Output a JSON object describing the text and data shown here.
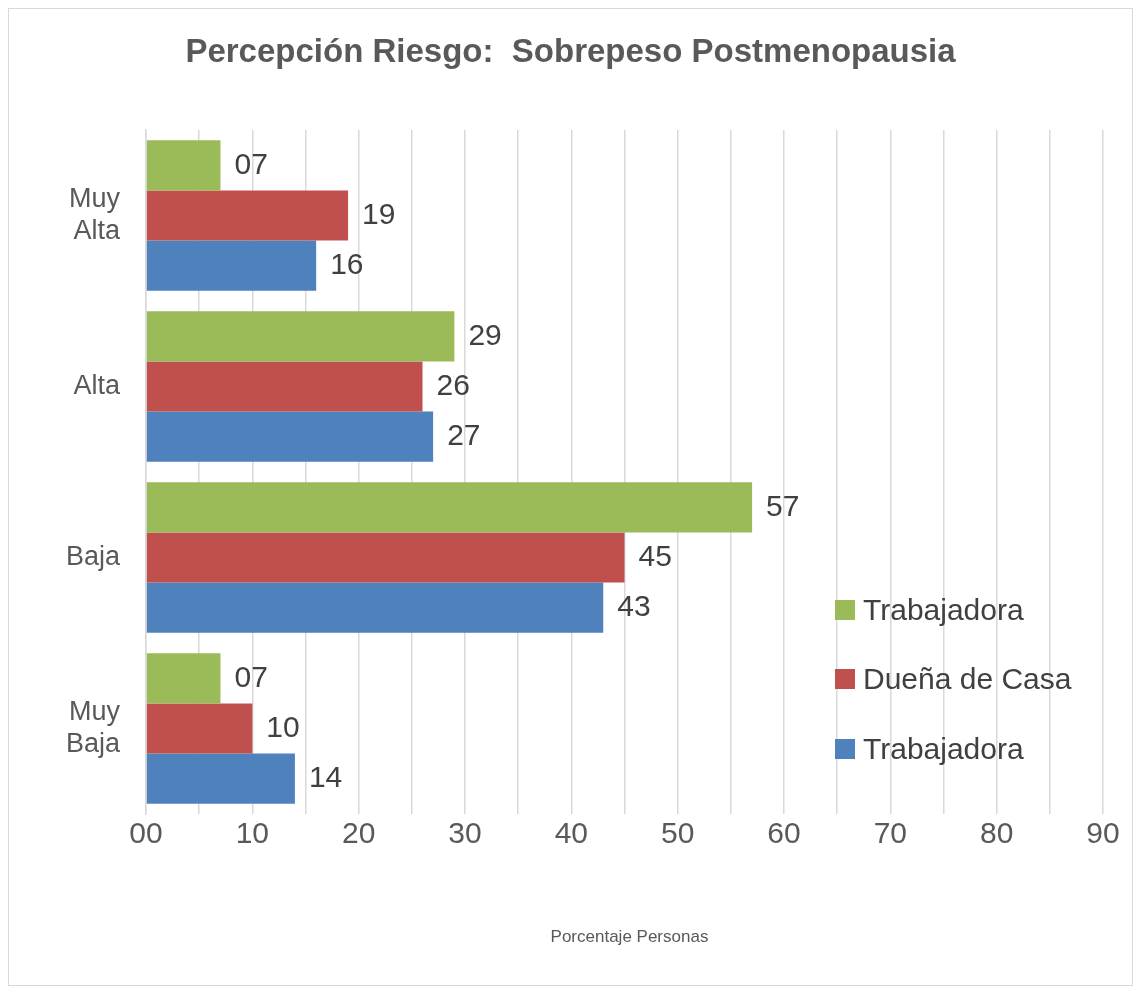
{
  "chart_data": {
    "type": "bar",
    "orientation": "horizontal",
    "title": "Percepción Riesgo:  Sobrepeso Postmenopausia",
    "xlabel": "Porcentaje Personas",
    "categories": [
      "Muy Alta",
      "Alta",
      "Baja",
      "Muy Baja"
    ],
    "series": [
      {
        "name": "Trabajadora",
        "color": "#9bbb59",
        "values": [
          7,
          29,
          57,
          7
        ],
        "value_labels": [
          "07",
          "29",
          "57",
          "07"
        ]
      },
      {
        "name": "Dueña de Casa",
        "color": "#c0504d",
        "values": [
          19,
          26,
          45,
          10
        ],
        "value_labels": [
          "19",
          "26",
          "45",
          "10"
        ]
      },
      {
        "name": "Trabajadora",
        "color": "#4f81bd",
        "values": [
          16,
          27,
          43,
          14
        ],
        "value_labels": [
          "16",
          "27",
          "43",
          "14"
        ]
      }
    ],
    "xlim": [
      0,
      90
    ],
    "xticks": [
      {
        "value": 0,
        "label": "00"
      },
      {
        "value": 5,
        "label": null
      },
      10,
      {
        "value": 15,
        "label": null
      },
      20,
      {
        "value": 25,
        "label": null
      },
      30,
      {
        "value": 35,
        "label": null
      },
      40,
      {
        "value": 45,
        "label": null
      },
      50,
      {
        "value": 55,
        "label": null
      },
      60,
      {
        "value": 65,
        "label": null
      },
      70,
      {
        "value": 75,
        "label": null
      },
      80,
      {
        "value": 85,
        "label": null
      },
      90
    ],
    "grid": "x",
    "legend": "bottom right"
  }
}
